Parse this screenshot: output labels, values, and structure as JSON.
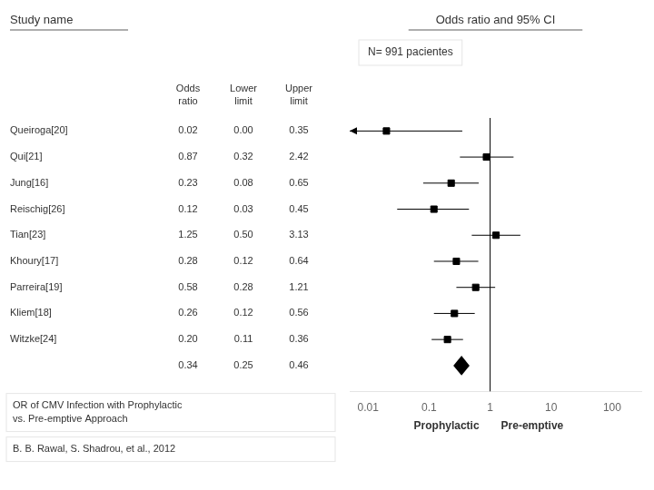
{
  "chart_data": {
    "type": "forest",
    "title": "Odds ratio and 95% CI",
    "table_title": "Study name",
    "table_headers": [
      "Odds\nratio",
      "Lower\nlimit",
      "Upper\nlimit"
    ],
    "categories": [
      "Queiroga[20]",
      "Qui[21]",
      "Jung[16]",
      "Reischig[26]",
      "Tian[23]",
      "Khoury[17]",
      "Parreira[19]",
      "Kliem[18]",
      "Witzke[24]"
    ],
    "values": [
      0.02,
      0.87,
      0.23,
      0.12,
      1.25,
      0.28,
      0.58,
      0.26,
      0.2
    ],
    "value_labels": [
      "0.02",
      "0.87",
      "0.23",
      "0.12",
      "1.25",
      "0.28",
      "0.58",
      "0.26",
      "0.20"
    ],
    "lower": [
      0.0,
      0.32,
      0.08,
      0.03,
      0.5,
      0.12,
      0.28,
      0.12,
      0.11
    ],
    "lower_labels": [
      "0.00",
      "0.32",
      "0.08",
      "0.03",
      "0.50",
      "0.12",
      "0.28",
      "0.12",
      "0.11"
    ],
    "upper": [
      0.35,
      2.42,
      0.65,
      0.45,
      3.13,
      0.64,
      1.21,
      0.56,
      0.36
    ],
    "upper_labels": [
      "0.35",
      "2.42",
      "0.65",
      "0.45",
      "3.13",
      "0.64",
      "1.21",
      "0.56",
      "0.36"
    ],
    "summary": {
      "value": 0.34,
      "lower": 0.25,
      "upper": 0.46,
      "value_label": "0.34",
      "lower_label": "0.25",
      "upper_label": "0.46"
    },
    "reference_line": 1,
    "xlim": [
      0.005,
      300
    ],
    "xticks": [
      0.01,
      0.1,
      1,
      10,
      100
    ],
    "log": "x",
    "grid": false,
    "color": "#000000",
    "marker": "square",
    "xlabel_left": "Prophylactic",
    "xlabel_right": "Pre-emptive",
    "annotation": "N= 991 pacientes",
    "footnotes": [
      "OR of CMV Infection with Prophylactic\nvs. Pre-emptive Approach",
      "B. B. Rawal, S. Shadrou, et al., 2012"
    ]
  }
}
